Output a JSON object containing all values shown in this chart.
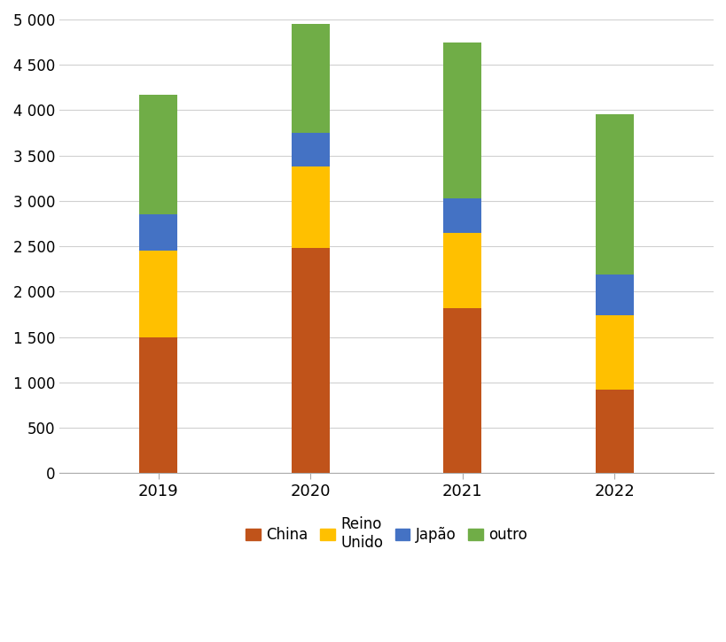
{
  "years": [
    "2019",
    "2020",
    "2021",
    "2022"
  ],
  "china": [
    1500,
    2480,
    1820,
    920
  ],
  "reino_unido": [
    950,
    900,
    830,
    820
  ],
  "japao": [
    400,
    370,
    380,
    450
  ],
  "outro": [
    1320,
    1200,
    1720,
    1770
  ],
  "colors": {
    "china": "#C0531A",
    "reino_unido": "#FFC000",
    "japao": "#4472C4",
    "outro": "#70AD47"
  },
  "ylim": [
    0,
    5000
  ],
  "yticks": [
    0,
    500,
    1000,
    1500,
    2000,
    2500,
    3000,
    3500,
    4000,
    4500,
    5000
  ],
  "ytick_labels": [
    "0",
    "500",
    "1 000",
    "1 500",
    "2 000",
    "2 500",
    "3 000",
    "3 500",
    "4 000",
    "4 500",
    "5 000"
  ],
  "legend_labels": [
    "China",
    "Reino\nUnido",
    "Japão",
    "outro"
  ],
  "bar_width": 0.25,
  "background_color": "#ffffff",
  "grid_color": "#d0d0d0"
}
